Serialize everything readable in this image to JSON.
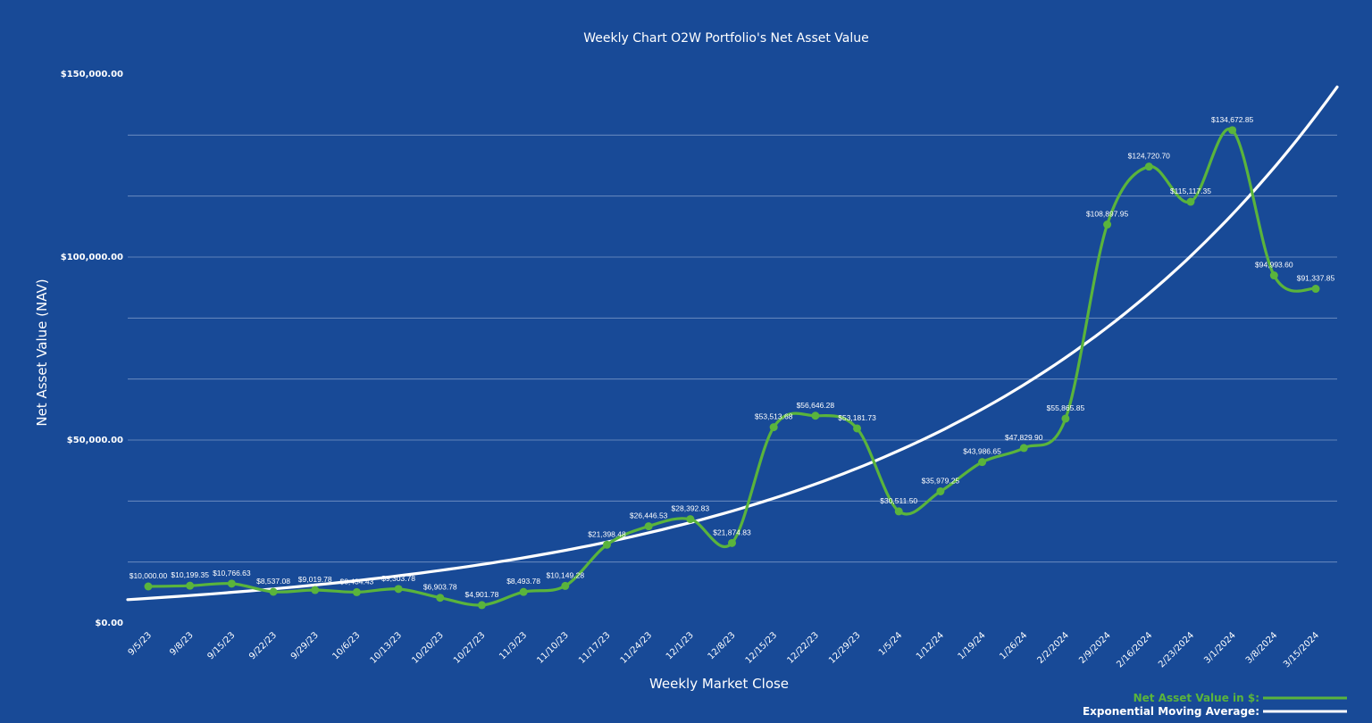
{
  "chart_data": {
    "type": "line",
    "title": "Weekly Chart O2W Portfolio's Net Asset Value",
    "xlabel": "Weekly Market Close",
    "ylabel": "Net Asset Value (NAV)",
    "ylim": [
      0,
      150000
    ],
    "y_ticks": [
      {
        "value": 0,
        "label": "$0.00"
      },
      {
        "value": 50000,
        "label": "$50,000.00"
      },
      {
        "value": 100000,
        "label": "$100,000.00"
      },
      {
        "value": 150000,
        "label": "$150,000.00"
      }
    ],
    "gridlines": [
      16667,
      33333,
      50000,
      66667,
      83333,
      100000,
      116667,
      133333
    ],
    "categories": [
      "9/5/23",
      "9/8/23",
      "9/15/23",
      "9/22/23",
      "9/29/23",
      "10/6/23",
      "10/13/23",
      "10/20/23",
      "10/27/23",
      "11/3/23",
      "11/10/23",
      "11/17/23",
      "11/24/23",
      "12/1/23",
      "12/8/23",
      "12/15/23",
      "12/22/23",
      "12/29/23",
      "1/5/24",
      "1/12/24",
      "1/19/24",
      "1/26/24",
      "2/2/2024",
      "2/9/2024",
      "2/16/2024",
      "2/23/2024",
      "3/1/2024",
      "3/8/2024",
      "3/15/2024"
    ],
    "series": [
      {
        "name": "Net Asset Value in $:",
        "color": "#5ab43c",
        "values": [
          10000.0,
          10199.35,
          10766.63,
          8537.08,
          9019.78,
          8434.43,
          9303.78,
          6903.78,
          4901.78,
          8493.78,
          10149.28,
          21398.48,
          26446.53,
          28392.83,
          21874.83,
          53513.68,
          56646.28,
          53181.73,
          30511.5,
          35979.25,
          43986.65,
          47829.9,
          55865.85,
          108897.95,
          124720.7,
          115117.35,
          134672.85,
          94993.6,
          91337.85
        ],
        "labels": [
          "$10,000.00",
          "$10,199.35",
          "$10,766.63",
          "$8,537.08",
          "$9,019.78",
          "$8,434.43",
          "$9,303.78",
          "$6,903.78",
          "$4,901.78",
          "$8,493.78",
          "$10,149.28",
          "$21,398.48",
          "$26,446.53",
          "$28,392.83",
          "$21,874.83",
          "$53,513.68",
          "$56,646.28",
          "$53,181.73",
          "$30,511.50",
          "$35,979.25",
          "$43,986.65",
          "$47,829.90",
          "$55,865.85",
          "$108,897.95",
          "$124,720.70",
          "$115,117.35",
          "$134,672.85",
          "$94,993.60",
          "$91,337.85"
        ]
      },
      {
        "name": "Exponential Moving Average:",
        "color": "#ffffff",
        "trend": {
          "type": "exponential",
          "start_value": 6400,
          "end_value": 146500
        }
      }
    ],
    "legend": "bottom-right"
  }
}
